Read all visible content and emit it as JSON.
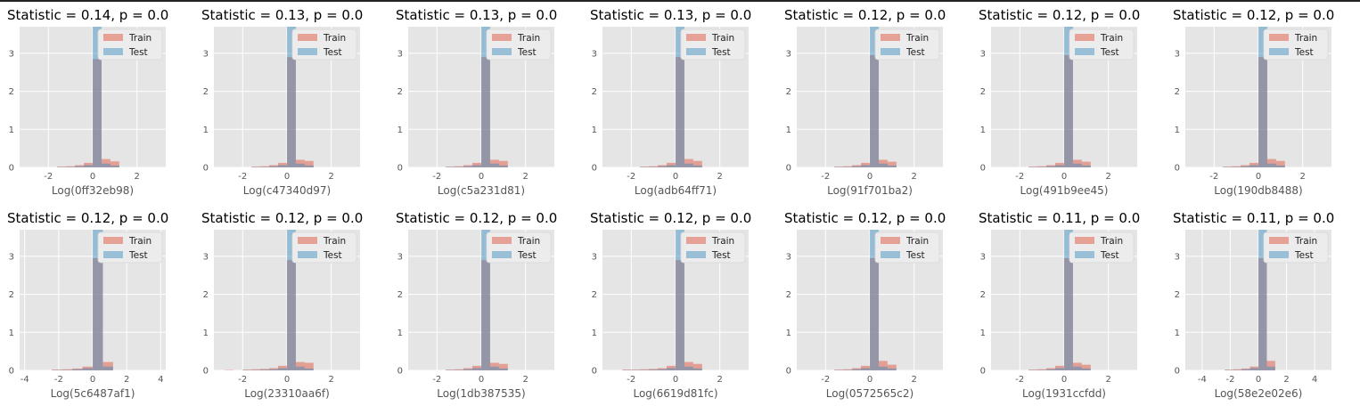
{
  "colors": {
    "train": "#E24A33",
    "test": "#348ABD",
    "panel_bg": "#E5E5E5",
    "grid": "#FFFFFF",
    "text": "#555555"
  },
  "legend": {
    "train": "Train",
    "test": "Test"
  },
  "chart_data": [
    {
      "type": "bar",
      "title": "Statistic = 0.14, p = 0.0",
      "xlabel": "Log(0ff32eb98)",
      "xticks": [
        -2,
        0,
        2
      ],
      "xlim": [
        -3.3,
        3.3
      ],
      "yticks": [
        0,
        1,
        2,
        3
      ],
      "ylim": [
        0,
        3.7
      ],
      "grid": true,
      "legend": "top-right",
      "bin_edges": [
        -1.6,
        -1.2,
        -0.8,
        -0.4,
        0,
        0.4,
        0.8,
        1.2
      ],
      "series": [
        {
          "name": "Train",
          "values": [
            0.02,
            0.03,
            0.06,
            0.12,
            2.85,
            0.22,
            0.16
          ]
        },
        {
          "name": "Test",
          "values": [
            0.01,
            0.01,
            0.03,
            0.06,
            3.7,
            0.1,
            0.05
          ]
        }
      ]
    },
    {
      "type": "bar",
      "title": "Statistic = 0.13, p = 0.0",
      "xlabel": "Log(c47340d97)",
      "xticks": [
        -2,
        0,
        2
      ],
      "xlim": [
        -3.3,
        3.3
      ],
      "yticks": [
        0,
        1,
        2,
        3
      ],
      "ylim": [
        0,
        3.7
      ],
      "grid": true,
      "legend": "top-right",
      "bin_edges": [
        -1.6,
        -1.2,
        -0.8,
        -0.4,
        0,
        0.4,
        0.8,
        1.2
      ],
      "series": [
        {
          "name": "Train",
          "values": [
            0.02,
            0.03,
            0.06,
            0.12,
            2.9,
            0.2,
            0.17
          ]
        },
        {
          "name": "Test",
          "values": [
            0.01,
            0.01,
            0.03,
            0.06,
            3.7,
            0.1,
            0.05
          ]
        }
      ]
    },
    {
      "type": "bar",
      "title": "Statistic = 0.13, p = 0.0",
      "xlabel": "Log(c5a231d81)",
      "xticks": [
        -2,
        0,
        2
      ],
      "xlim": [
        -3.3,
        3.3
      ],
      "yticks": [
        0,
        1,
        2,
        3
      ],
      "ylim": [
        0,
        3.7
      ],
      "grid": true,
      "legend": "top-right",
      "bin_edges": [
        -1.6,
        -1.2,
        -0.8,
        -0.4,
        0,
        0.4,
        0.8,
        1.2
      ],
      "series": [
        {
          "name": "Train",
          "values": [
            0.02,
            0.03,
            0.06,
            0.12,
            2.9,
            0.2,
            0.17
          ]
        },
        {
          "name": "Test",
          "values": [
            0.01,
            0.01,
            0.03,
            0.06,
            3.7,
            0.1,
            0.05
          ]
        }
      ]
    },
    {
      "type": "bar",
      "title": "Statistic = 0.13, p = 0.0",
      "xlabel": "Log(adb64ff71)",
      "xticks": [
        -2,
        0,
        2
      ],
      "xlim": [
        -3.3,
        3.3
      ],
      "yticks": [
        0,
        1,
        2,
        3
      ],
      "ylim": [
        0,
        3.7
      ],
      "grid": true,
      "legend": "top-right",
      "bin_edges": [
        -1.6,
        -1.2,
        -0.8,
        -0.4,
        0,
        0.4,
        0.8,
        1.2
      ],
      "series": [
        {
          "name": "Train",
          "values": [
            0.02,
            0.03,
            0.06,
            0.12,
            2.9,
            0.22,
            0.17
          ]
        },
        {
          "name": "Test",
          "values": [
            0.01,
            0.01,
            0.03,
            0.06,
            3.7,
            0.1,
            0.05
          ]
        }
      ]
    },
    {
      "type": "bar",
      "title": "Statistic = 0.12, p = 0.0",
      "xlabel": "Log(91f701ba2)",
      "xticks": [
        -2,
        0,
        2
      ],
      "xlim": [
        -3.3,
        3.3
      ],
      "yticks": [
        0,
        1,
        2,
        3
      ],
      "ylim": [
        0,
        3.7
      ],
      "grid": true,
      "legend": "top-right",
      "bin_edges": [
        -1.6,
        -1.2,
        -0.8,
        -0.4,
        0,
        0.4,
        0.8,
        1.2
      ],
      "series": [
        {
          "name": "Train",
          "values": [
            0.02,
            0.03,
            0.06,
            0.12,
            2.95,
            0.2,
            0.15
          ]
        },
        {
          "name": "Test",
          "values": [
            0.01,
            0.01,
            0.03,
            0.06,
            3.7,
            0.1,
            0.05
          ]
        }
      ]
    },
    {
      "type": "bar",
      "title": "Statistic = 0.12, p = 0.0",
      "xlabel": "Log(491b9ee45)",
      "xticks": [
        -2,
        0,
        2
      ],
      "xlim": [
        -3.3,
        3.3
      ],
      "yticks": [
        0,
        1,
        2,
        3
      ],
      "ylim": [
        0,
        3.7
      ],
      "grid": true,
      "legend": "top-right",
      "bin_edges": [
        -1.6,
        -1.2,
        -0.8,
        -0.4,
        0,
        0.4,
        0.8,
        1.2
      ],
      "series": [
        {
          "name": "Train",
          "values": [
            0.02,
            0.03,
            0.06,
            0.12,
            2.95,
            0.2,
            0.15
          ]
        },
        {
          "name": "Test",
          "values": [
            0.01,
            0.01,
            0.03,
            0.06,
            3.7,
            0.1,
            0.05
          ]
        }
      ]
    },
    {
      "type": "bar",
      "title": "Statistic = 0.12, p = 0.0",
      "xlabel": "Log(190db8488)",
      "xticks": [
        -2,
        0,
        2
      ],
      "xlim": [
        -3.3,
        3.3
      ],
      "yticks": [
        0,
        1,
        2,
        3
      ],
      "ylim": [
        0,
        3.7
      ],
      "grid": true,
      "legend": "top-right",
      "bin_edges": [
        -1.6,
        -1.2,
        -0.8,
        -0.4,
        0,
        0.4,
        0.8,
        1.2
      ],
      "series": [
        {
          "name": "Train",
          "values": [
            0.02,
            0.03,
            0.06,
            0.12,
            2.9,
            0.22,
            0.17
          ]
        },
        {
          "name": "Test",
          "values": [
            0.01,
            0.01,
            0.03,
            0.06,
            3.7,
            0.1,
            0.05
          ]
        }
      ]
    },
    {
      "type": "bar",
      "title": "Statistic = 0.12, p = 0.0",
      "xlabel": "Log(5c6487af1)",
      "xticks": [
        -4,
        -2,
        0,
        2,
        4
      ],
      "xlim": [
        -4.3,
        4.3
      ],
      "yticks": [
        0,
        1,
        2,
        3
      ],
      "ylim": [
        0,
        3.7
      ],
      "grid": true,
      "legend": "top-right",
      "bin_edges": [
        -2.4,
        -1.8,
        -1.2,
        -0.6,
        0,
        0.6,
        1.2
      ],
      "series": [
        {
          "name": "Train",
          "values": [
            0.02,
            0.03,
            0.05,
            0.1,
            2.95,
            0.22
          ]
        },
        {
          "name": "Test",
          "values": [
            0.01,
            0.01,
            0.03,
            0.06,
            3.7,
            0.1
          ]
        }
      ]
    },
    {
      "type": "bar",
      "title": "Statistic = 0.12, p = 0.0",
      "xlabel": "Log(23310aa6f)",
      "xticks": [
        -2,
        0,
        2
      ],
      "xlim": [
        -3.3,
        3.3
      ],
      "yticks": [
        0,
        1,
        2,
        3
      ],
      "ylim": [
        0,
        3.7
      ],
      "grid": true,
      "legend": "top-right",
      "bin_edges": [
        -2.8,
        -2.4,
        -2.0,
        -1.6,
        -1.2,
        -0.8,
        -0.4,
        0,
        0.4,
        0.8,
        1.2
      ],
      "series": [
        {
          "name": "Train",
          "values": [
            0.01,
            0.0,
            0.02,
            0.03,
            0.04,
            0.06,
            0.12,
            2.9,
            0.22,
            0.2
          ]
        },
        {
          "name": "Test",
          "values": [
            0.0,
            0.0,
            0.01,
            0.01,
            0.02,
            0.03,
            0.06,
            3.7,
            0.1,
            0.05
          ]
        }
      ]
    },
    {
      "type": "bar",
      "title": "Statistic = 0.12, p = 0.0",
      "xlabel": "Log(1db387535)",
      "xticks": [
        -2,
        0,
        2
      ],
      "xlim": [
        -3.3,
        3.3
      ],
      "yticks": [
        0,
        1,
        2,
        3
      ],
      "ylim": [
        0,
        3.7
      ],
      "grid": true,
      "legend": "top-right",
      "bin_edges": [
        -1.6,
        -1.2,
        -0.8,
        -0.4,
        0,
        0.4,
        0.8,
        1.2
      ],
      "series": [
        {
          "name": "Train",
          "values": [
            0.02,
            0.03,
            0.06,
            0.12,
            2.9,
            0.2,
            0.17
          ]
        },
        {
          "name": "Test",
          "values": [
            0.01,
            0.01,
            0.03,
            0.06,
            3.7,
            0.1,
            0.05
          ]
        }
      ]
    },
    {
      "type": "bar",
      "title": "Statistic = 0.12, p = 0.0",
      "xlabel": "Log(6619d81fc)",
      "xticks": [
        -2,
        0,
        2
      ],
      "xlim": [
        -3.3,
        3.3
      ],
      "yticks": [
        0,
        1,
        2,
        3
      ],
      "ylim": [
        0,
        3.7
      ],
      "grid": true,
      "legend": "top-right",
      "bin_edges": [
        -2.4,
        -2.0,
        -1.6,
        -1.2,
        -0.8,
        -0.4,
        0,
        0.4,
        0.8,
        1.2
      ],
      "series": [
        {
          "name": "Train",
          "values": [
            0.02,
            0.02,
            0.03,
            0.04,
            0.06,
            0.12,
            2.9,
            0.22,
            0.17
          ]
        },
        {
          "name": "Test",
          "values": [
            0.01,
            0.01,
            0.01,
            0.02,
            0.03,
            0.06,
            3.7,
            0.1,
            0.05
          ]
        }
      ]
    },
    {
      "type": "bar",
      "title": "Statistic = 0.12, p = 0.0",
      "xlabel": "Log(0572565c2)",
      "xticks": [
        -2,
        0,
        2
      ],
      "xlim": [
        -3.3,
        3.3
      ],
      "yticks": [
        0,
        1,
        2,
        3
      ],
      "ylim": [
        0,
        3.7
      ],
      "grid": true,
      "legend": "top-right",
      "bin_edges": [
        -1.6,
        -1.2,
        -0.8,
        -0.4,
        0,
        0.4,
        0.8,
        1.2
      ],
      "series": [
        {
          "name": "Train",
          "values": [
            0.02,
            0.03,
            0.06,
            0.12,
            2.95,
            0.25,
            0.15
          ]
        },
        {
          "name": "Test",
          "values": [
            0.01,
            0.01,
            0.03,
            0.06,
            3.7,
            0.1,
            0.05
          ]
        }
      ]
    },
    {
      "type": "bar",
      "title": "Statistic = 0.11, p = 0.0",
      "xlabel": "Log(1931ccfdd)",
      "xticks": [
        -2,
        0,
        2
      ],
      "xlim": [
        -3.3,
        3.3
      ],
      "yticks": [
        0,
        1,
        2,
        3
      ],
      "ylim": [
        0,
        3.7
      ],
      "grid": true,
      "legend": "top-right",
      "bin_edges": [
        -1.6,
        -1.2,
        -0.8,
        -0.4,
        0,
        0.4,
        0.8,
        1.2
      ],
      "series": [
        {
          "name": "Train",
          "values": [
            0.02,
            0.03,
            0.06,
            0.12,
            2.95,
            0.2,
            0.15
          ]
        },
        {
          "name": "Test",
          "values": [
            0.01,
            0.01,
            0.03,
            0.06,
            3.7,
            0.1,
            0.05
          ]
        }
      ]
    },
    {
      "type": "bar",
      "title": "Statistic = 0.11, p = 0.0",
      "xlabel": "Log(58e2e02e6)",
      "xticks": [
        -4,
        -2,
        0,
        2,
        4
      ],
      "xlim": [
        -5.2,
        5.2
      ],
      "yticks": [
        0,
        1,
        2,
        3
      ],
      "ylim": [
        0,
        3.7
      ],
      "grid": true,
      "legend": "top-right",
      "bin_edges": [
        -2.4,
        -1.8,
        -1.2,
        -0.6,
        0,
        0.6,
        1.2
      ],
      "series": [
        {
          "name": "Train",
          "values": [
            0.02,
            0.03,
            0.05,
            0.1,
            2.95,
            0.25
          ]
        },
        {
          "name": "Test",
          "values": [
            0.01,
            0.01,
            0.03,
            0.06,
            3.7,
            0.1
          ]
        }
      ]
    }
  ]
}
